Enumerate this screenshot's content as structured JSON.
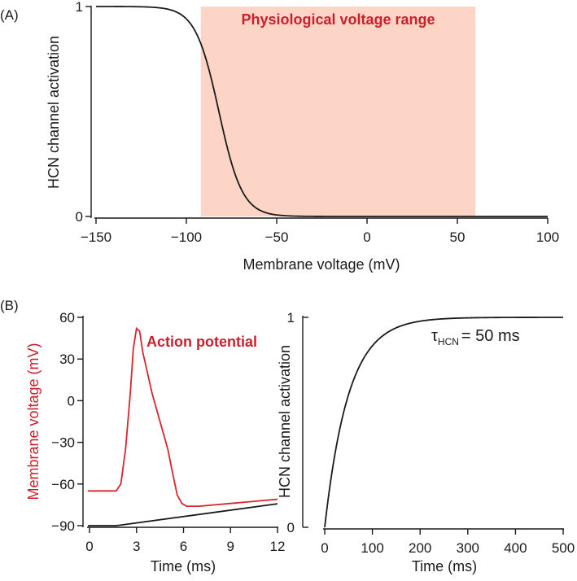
{
  "chart_data": [
    {
      "panel": "(A)",
      "type": "line",
      "xlabel": "Membrane voltage (mV)",
      "ylabel": "HCN channel activation",
      "xlim": [
        -150,
        100
      ],
      "ylim": [
        0,
        1
      ],
      "xticks": [
        -150,
        -100,
        -50,
        0,
        50,
        100
      ],
      "xtick_labels": [
        "−150",
        "−100",
        "−50",
        "0",
        "50",
        "100"
      ],
      "yticks": [
        0,
        1
      ],
      "ytick_labels": [
        "0",
        "1"
      ],
      "shaded_region": {
        "label": "Physiological voltage range",
        "x_range": [
          -92,
          60
        ],
        "color": "#fdd5c6",
        "label_color": "#c8202c"
      },
      "series": [
        {
          "name": "HCN activation vs voltage",
          "color": "#1a1a1a",
          "x": [
            -150,
            -130,
            -120,
            -110,
            -105,
            -100,
            -95,
            -90,
            -87,
            -85,
            -82,
            -80,
            -77,
            -75,
            -72,
            -70,
            -65,
            -60,
            -55,
            -50,
            -40,
            -30,
            -20,
            0,
            50,
            100
          ],
          "y": [
            1.0,
            0.999,
            0.995,
            0.98,
            0.96,
            0.92,
            0.86,
            0.75,
            0.66,
            0.6,
            0.5,
            0.42,
            0.32,
            0.25,
            0.18,
            0.13,
            0.07,
            0.035,
            0.015,
            0.008,
            0.002,
            0.0005,
            0.0001,
            0.0,
            0.0,
            0.0
          ]
        }
      ]
    },
    {
      "panel": "(B)",
      "type": "line",
      "xlabel": "Time (ms)",
      "ylabel": "Membrane voltage (mV)",
      "ylabel_color": "#c8202c",
      "xlim": [
        0,
        12
      ],
      "ylim": [
        -90,
        60
      ],
      "xticks": [
        0,
        3,
        6,
        9,
        12
      ],
      "xtick_labels": [
        "0",
        "3",
        "6",
        "9",
        "12"
      ],
      "yticks": [
        60,
        30,
        0,
        -30,
        -60,
        -90
      ],
      "ytick_labels": [
        "60",
        "30",
        "0",
        "−30",
        "−60",
        "−90"
      ],
      "annotation": "Action potential",
      "series": [
        {
          "name": "Action potential",
          "color": "#d7262b",
          "axis": "left",
          "x": [
            -0.1,
            1.7,
            2.0,
            2.3,
            2.6,
            2.8,
            3.0,
            3.2,
            3.4,
            3.7,
            4.0,
            4.5,
            5.0,
            5.3,
            5.6,
            5.9,
            6.2,
            6.5,
            7.0,
            8.0,
            9.0,
            10.0,
            11.0,
            12.0
          ],
          "y": [
            -65,
            -65,
            -60,
            -35,
            5,
            38,
            52,
            50,
            35,
            20,
            5,
            -15,
            -35,
            -52,
            -68,
            -74,
            -76,
            -76,
            -76,
            -75,
            -74,
            -73,
            -72,
            -71
          ]
        },
        {
          "name": "HCN channel activation",
          "color": "#1a1a1a",
          "axis": "right",
          "x": [
            -0.1,
            1.7,
            2.0,
            12.0
          ],
          "y": [
            0,
            0,
            0.003,
            0.105
          ]
        }
      ]
    },
    {
      "panel": "(B) right",
      "type": "line",
      "xlabel": "Time (ms)",
      "ylabel": "HCN channel activation",
      "xlim": [
        0,
        500
      ],
      "ylim": [
        0,
        1
      ],
      "xticks": [
        0,
        100,
        200,
        300,
        400,
        500
      ],
      "xtick_labels": [
        "0",
        "100",
        "200",
        "300",
        "400",
        "500"
      ],
      "yticks": [
        0,
        1
      ],
      "ytick_labels": [
        "0",
        "1"
      ],
      "annotation": {
        "tau_symbol": "τ",
        "tau_subscript": "HCN",
        "tau_value": "= 50 ms"
      },
      "series": [
        {
          "name": "HCN activation vs time",
          "color": "#1a1a1a",
          "tau": 50,
          "x": [
            0,
            10,
            25,
            50,
            75,
            100,
            150,
            200,
            250,
            300,
            400,
            500
          ],
          "y": [
            0,
            0.181,
            0.393,
            0.632,
            0.777,
            0.865,
            0.95,
            0.982,
            0.993,
            0.998,
            1.0,
            1.0
          ]
        }
      ]
    }
  ]
}
